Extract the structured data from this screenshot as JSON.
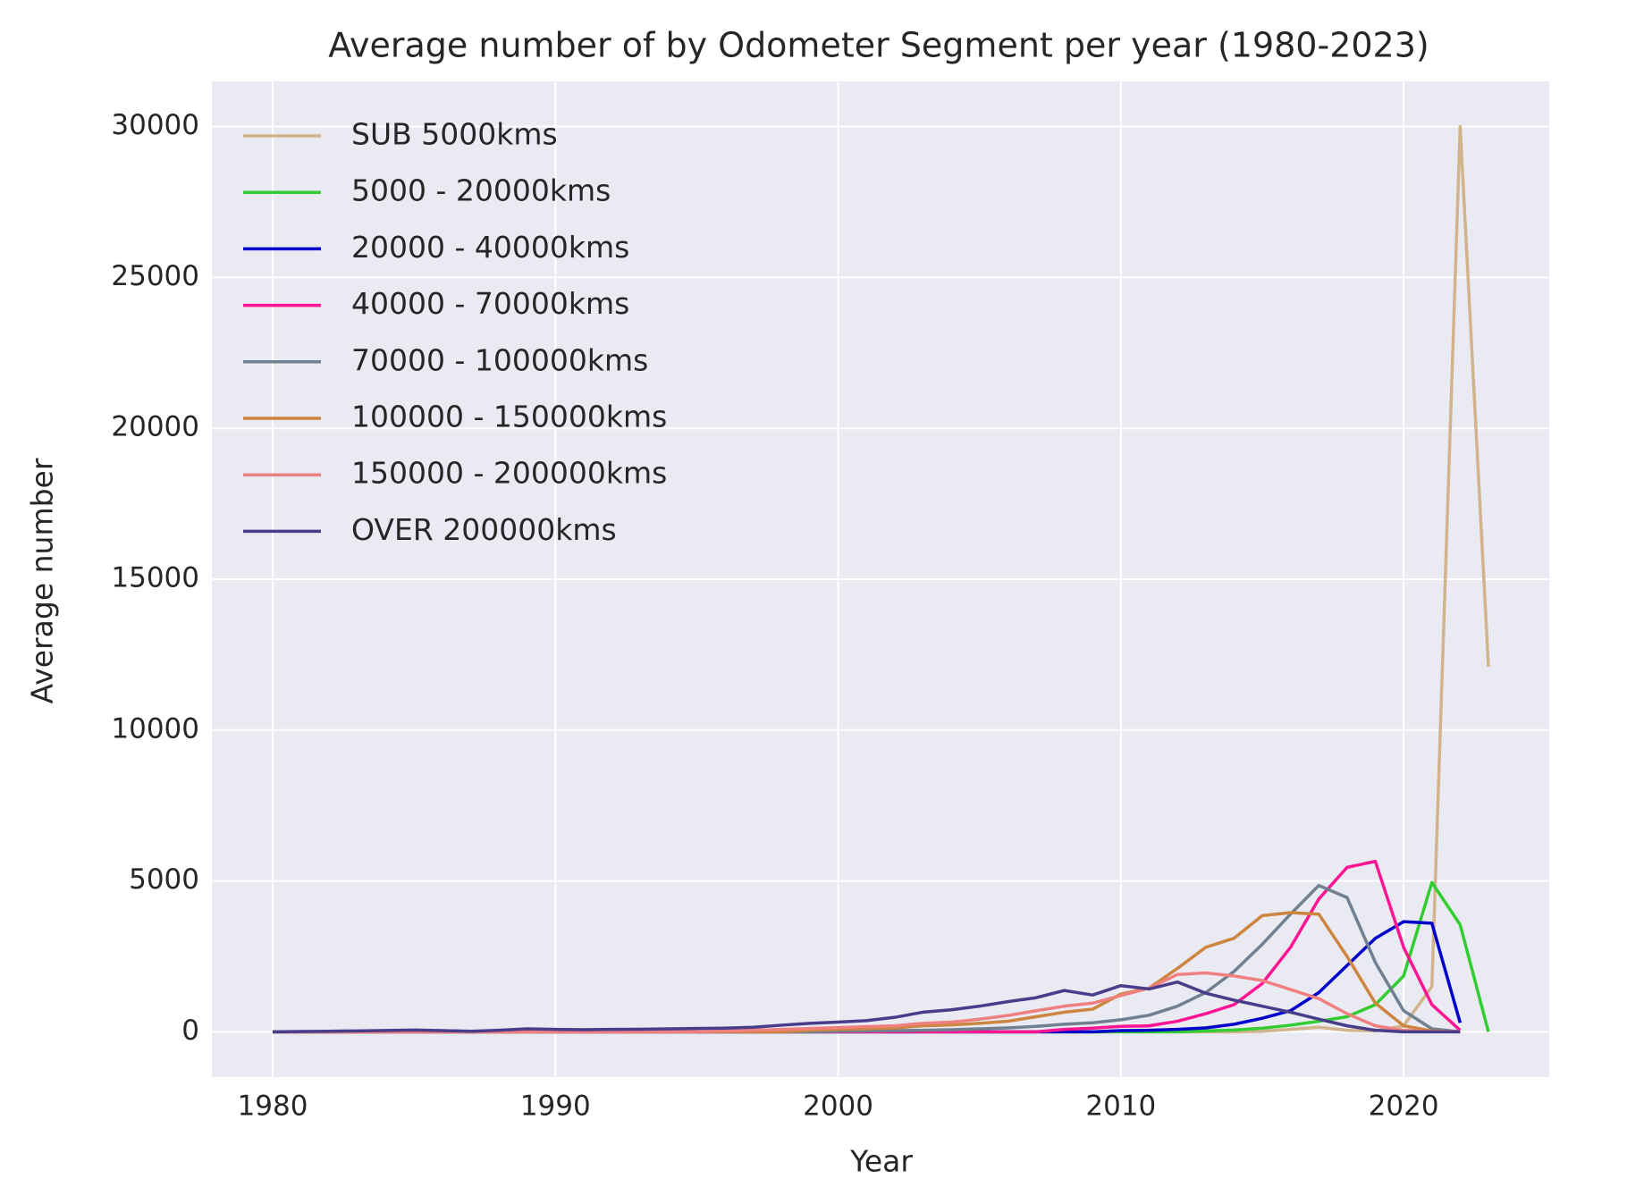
{
  "chart_data": {
    "type": "line",
    "title": "Average number of by Odometer Segment per year (1980-2023)",
    "x_label": "Year",
    "y_label": "Average number",
    "x": [
      1980,
      1981,
      1982,
      1983,
      1984,
      1985,
      1986,
      1987,
      1988,
      1989,
      1990,
      1991,
      1992,
      1993,
      1994,
      1995,
      1996,
      1997,
      1998,
      1999,
      2000,
      2001,
      2002,
      2003,
      2004,
      2005,
      2006,
      2007,
      2008,
      2009,
      2010,
      2011,
      2012,
      2013,
      2014,
      2015,
      2016,
      2017,
      2018,
      2019,
      2020,
      2021,
      2022,
      2023
    ],
    "series": [
      {
        "name": "SUB 5000kms",
        "color": "#d2b48c",
        "values": [
          0,
          0,
          0,
          0,
          0,
          0,
          0,
          0,
          0,
          0,
          0,
          0,
          0,
          0,
          0,
          0,
          0,
          0,
          0,
          0,
          0,
          0,
          0,
          0,
          0,
          0,
          0,
          0,
          0,
          0,
          0,
          0,
          0,
          0,
          0,
          20,
          80,
          150,
          50,
          30,
          200,
          1500,
          30000,
          12100
        ]
      },
      {
        "name": "5000 - 20000kms",
        "color": "#32cd32",
        "values": [
          0,
          0,
          0,
          0,
          0,
          0,
          0,
          0,
          0,
          0,
          0,
          0,
          0,
          0,
          0,
          0,
          0,
          0,
          0,
          0,
          0,
          0,
          0,
          0,
          0,
          0,
          0,
          0,
          0,
          0,
          0,
          0,
          0,
          30,
          60,
          120,
          220,
          350,
          500,
          900,
          1850,
          4950,
          3550,
          0
        ]
      },
      {
        "name": "20000 - 40000kms",
        "color": "#0000cd",
        "values": [
          0,
          0,
          0,
          0,
          0,
          0,
          0,
          0,
          0,
          0,
          0,
          0,
          0,
          0,
          0,
          0,
          0,
          0,
          0,
          0,
          0,
          0,
          0,
          0,
          0,
          0,
          0,
          0,
          0,
          0,
          40,
          50,
          80,
          130,
          250,
          450,
          700,
          1300,
          2200,
          3100,
          3650,
          3600,
          300,
          null
        ]
      },
      {
        "name": "40000 - 70000kms",
        "color": "#ff1493",
        "values": [
          0,
          0,
          0,
          0,
          0,
          0,
          0,
          0,
          0,
          0,
          0,
          0,
          0,
          0,
          0,
          0,
          0,
          0,
          0,
          0,
          0,
          0,
          0,
          0,
          0,
          0,
          0,
          0,
          80,
          120,
          180,
          200,
          350,
          600,
          900,
          1600,
          2800,
          4400,
          5450,
          5650,
          2800,
          900,
          50,
          null
        ]
      },
      {
        "name": "70000 - 100000kms",
        "color": "#708090",
        "values": [
          0,
          0,
          0,
          0,
          0,
          0,
          0,
          0,
          0,
          0,
          0,
          0,
          0,
          0,
          0,
          0,
          0,
          0,
          0,
          0,
          20,
          30,
          40,
          50,
          70,
          100,
          130,
          180,
          250,
          300,
          400,
          550,
          850,
          1300,
          2000,
          2900,
          3900,
          4850,
          4450,
          2300,
          700,
          100,
          0,
          null
        ]
      },
      {
        "name": "100000 - 150000kms",
        "color": "#cd853f",
        "values": [
          0,
          0,
          0,
          0,
          0,
          0,
          0,
          0,
          0,
          0,
          0,
          0,
          0,
          0,
          0,
          0,
          0,
          0,
          0,
          50,
          80,
          100,
          130,
          200,
          230,
          280,
          350,
          500,
          650,
          750,
          1250,
          1450,
          2100,
          2800,
          3100,
          3850,
          3950,
          3900,
          2500,
          950,
          200,
          30,
          0,
          null
        ]
      },
      {
        "name": "150000 - 200000kms",
        "color": "#f08080",
        "values": [
          0,
          0,
          0,
          0,
          0,
          0,
          0,
          0,
          0,
          0,
          0,
          0,
          0,
          0,
          0,
          0,
          30,
          50,
          80,
          110,
          140,
          170,
          200,
          280,
          320,
          420,
          540,
          700,
          850,
          950,
          1200,
          1450,
          1900,
          1950,
          1850,
          1700,
          1400,
          1100,
          600,
          200,
          50,
          10,
          0,
          null
        ]
      },
      {
        "name": "OVER 200000kms",
        "color": "#483d8b",
        "values": [
          0,
          10,
          20,
          30,
          45,
          60,
          40,
          20,
          50,
          100,
          80,
          70,
          80,
          85,
          100,
          110,
          120,
          150,
          220,
          280,
          320,
          370,
          480,
          650,
          730,
          850,
          1000,
          1130,
          1370,
          1220,
          1530,
          1420,
          1650,
          1280,
          1050,
          850,
          650,
          420,
          200,
          50,
          0,
          0,
          0,
          null
        ]
      }
    ],
    "xlim": [
      1977.85,
      2025.15
    ],
    "xticks": [
      1980,
      1990,
      2000,
      2010,
      2020
    ],
    "ylim": [
      -1500,
      31500
    ],
    "yticks": [
      0,
      5000,
      10000,
      15000,
      20000,
      25000,
      30000
    ],
    "grid": true,
    "legend": "upper left"
  }
}
